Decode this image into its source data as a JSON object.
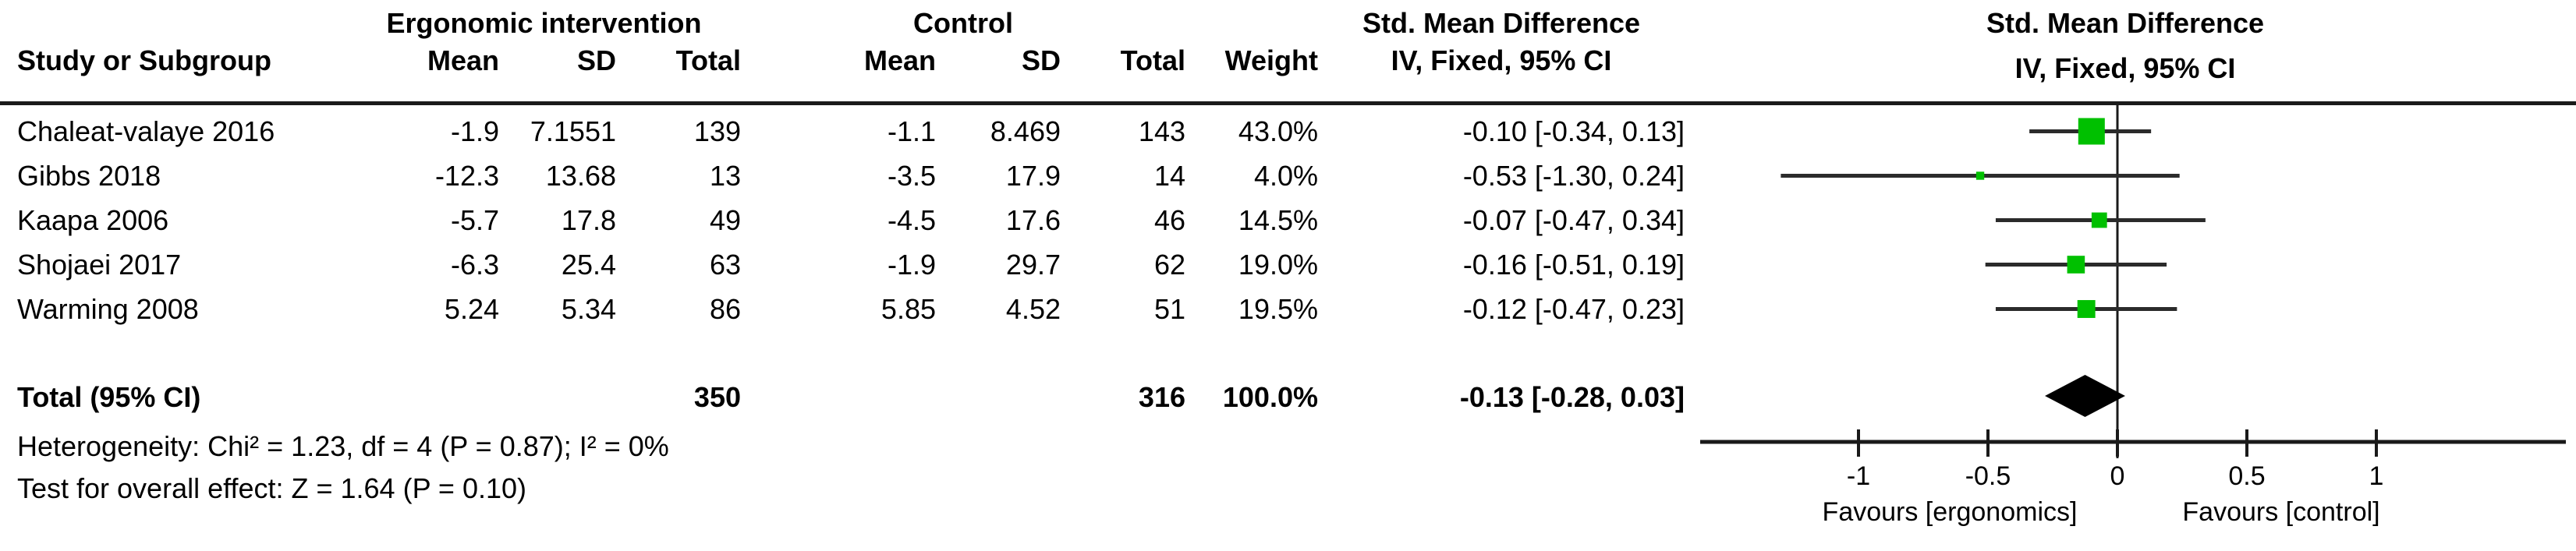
{
  "header": {
    "group1": "Ergonomic intervention",
    "group2": "Control",
    "study_col": "Study or Subgroup",
    "mean": "Mean",
    "sd": "SD",
    "total": "Total",
    "weight": "Weight",
    "effect_title": "Std. Mean Difference",
    "effect_sub": "IV, Fixed, 95% CI",
    "plot_title": "Std. Mean Difference",
    "plot_sub": "IV, Fixed, 95% CI"
  },
  "table": {
    "rows": [
      {
        "name": "Chaleat-valaye 2016",
        "mean1": "-1.9",
        "sd1": "7.1551",
        "total1": "139",
        "mean2": "-1.1",
        "sd2": "8.469",
        "total2": "143",
        "weight": "43.0%",
        "ci": "-0.10 [-0.34, 0.13]"
      },
      {
        "name": "Gibbs 2018",
        "mean1": "-12.3",
        "sd1": "13.68",
        "total1": "13",
        "mean2": "-3.5",
        "sd2": "17.9",
        "total2": "14",
        "weight": "4.0%",
        "ci": "-0.53 [-1.30, 0.24]"
      },
      {
        "name": "Kaapa 2006",
        "mean1": "-5.7",
        "sd1": "17.8",
        "total1": "49",
        "mean2": "-4.5",
        "sd2": "17.6",
        "total2": "46",
        "weight": "14.5%",
        "ci": "-0.07 [-0.47, 0.34]"
      },
      {
        "name": "Shojaei 2017",
        "mean1": "-6.3",
        "sd1": "25.4",
        "total1": "63",
        "mean2": "-1.9",
        "sd2": "29.7",
        "total2": "62",
        "weight": "19.0%",
        "ci": "-0.16 [-0.51, 0.19]"
      },
      {
        "name": "Warming 2008",
        "mean1": "5.24",
        "sd1": "5.34",
        "total1": "86",
        "mean2": "5.85",
        "sd2": "4.52",
        "total2": "51",
        "weight": "19.5%",
        "ci": "-0.12 [-0.47, 0.23]"
      }
    ],
    "total_row": {
      "label": "Total (95% CI)",
      "total1": "350",
      "total2": "316",
      "weight": "100.0%",
      "ci": "-0.13 [-0.28, 0.03]"
    }
  },
  "footer": {
    "heterogeneity": "Heterogeneity: Chi² = 1.23, df = 4 (P = 0.87); I² = 0%",
    "overall_effect": "Test for overall effect: Z = 1.64 (P = 0.10)"
  },
  "chart_data": {
    "type": "forest",
    "title": "Std. Mean Difference",
    "subtitle": "IV, Fixed, 95% CI",
    "effect_measure": "Std. Mean Difference, IV, Fixed, 95% CI",
    "x_ticks": [
      -1,
      -0.5,
      0,
      0.5,
      1
    ],
    "x_range": [
      -1.62,
      1.72
    ],
    "favours_left": "Favours [ergonomics]",
    "favours_right": "Favours [control]",
    "studies": [
      {
        "name": "Chaleat-valaye 2016",
        "est": -0.1,
        "lo": -0.34,
        "hi": 0.13,
        "weight": 43.0
      },
      {
        "name": "Gibbs 2018",
        "est": -0.53,
        "lo": -1.3,
        "hi": 0.24,
        "weight": 4.0
      },
      {
        "name": "Kaapa 2006",
        "est": -0.07,
        "lo": -0.47,
        "hi": 0.34,
        "weight": 14.5
      },
      {
        "name": "Shojaei 2017",
        "est": -0.16,
        "lo": -0.51,
        "hi": 0.19,
        "weight": 19.0
      },
      {
        "name": "Warming 2008",
        "est": -0.12,
        "lo": -0.47,
        "hi": 0.23,
        "weight": 19.5
      }
    ],
    "total": {
      "est": -0.13,
      "lo": -0.28,
      "hi": 0.03
    }
  },
  "colors": {
    "square": "#00C000",
    "ci_line": "#2b2b2b",
    "axis": "#1a1a1a",
    "diamond": "#000000"
  }
}
